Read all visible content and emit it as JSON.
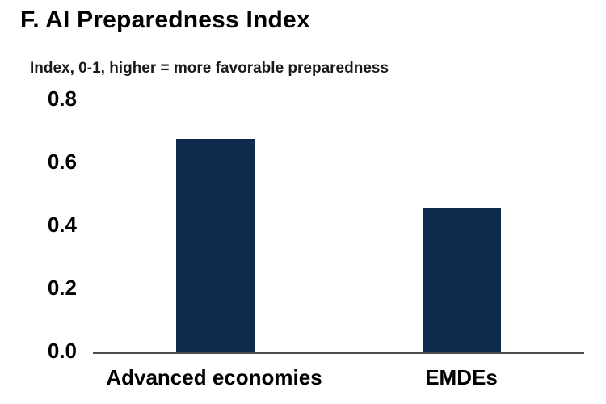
{
  "colors": {
    "bar": "#0e2a4d",
    "axis": "#4d4d4d",
    "text": "#000000"
  },
  "chart_data": {
    "type": "bar",
    "title": "F. AI Preparedness Index",
    "subtitle": "Index, 0-1, higher = more favorable preparedness",
    "categories": [
      "Advanced economies",
      "EMDEs"
    ],
    "values": [
      0.68,
      0.46
    ],
    "xlabel": "",
    "ylabel": "Index, 0-1, higher = more favorable preparedness",
    "ylim": [
      0,
      0.8
    ],
    "ytick_labels": [
      "0.8",
      "0.6",
      "0.4",
      "0.2",
      "0.0"
    ],
    "ytick_values": [
      0.8,
      0.6,
      0.4,
      0.2,
      0.0
    ],
    "grid": false,
    "legend": null,
    "bar_color": "#0e2a4d"
  }
}
